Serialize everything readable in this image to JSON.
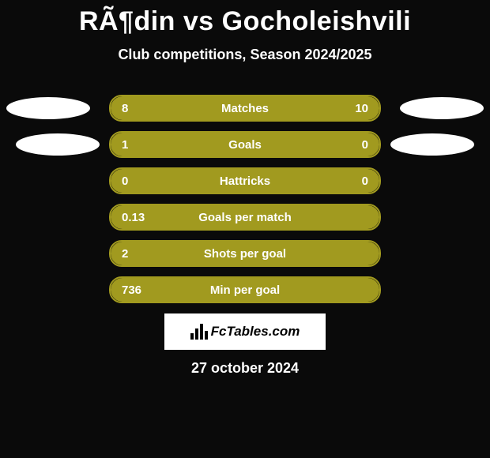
{
  "title": "RÃ¶din vs Gocholeishvili",
  "subtitle": "Club competitions, Season 2024/2025",
  "colors": {
    "background": "#0a0a0a",
    "text": "#ffffff",
    "bar_outline": "#a19a1f",
    "side_a": "#a19a1f",
    "side_b": "#a19a1f",
    "shield_a": "#ffffff",
    "shield_b": "#ffffff",
    "logo_bg": "#ffffff",
    "logo_text": "#000000"
  },
  "stats": [
    {
      "label": "Matches",
      "a": "8",
      "b": "10",
      "pct_a": 44,
      "shields": true,
      "shield_offset_a": 0,
      "shield_offset_b": 0
    },
    {
      "label": "Goals",
      "a": "1",
      "b": "0",
      "pct_a": 100,
      "shields": true,
      "shield_offset_a": 12,
      "shield_offset_b": 12
    },
    {
      "label": "Hattricks",
      "a": "0",
      "b": "0",
      "pct_a": 50,
      "shields": false
    },
    {
      "label": "Goals per match",
      "a": "0.13",
      "b": "",
      "pct_a": 100,
      "shields": false
    },
    {
      "label": "Shots per goal",
      "a": "2",
      "b": "",
      "pct_a": 100,
      "shields": false
    },
    {
      "label": "Min per goal",
      "a": "736",
      "b": "",
      "pct_a": 100,
      "shields": false
    }
  ],
  "logo_text": "FcTables.com",
  "footer_date": "27 october 2024"
}
